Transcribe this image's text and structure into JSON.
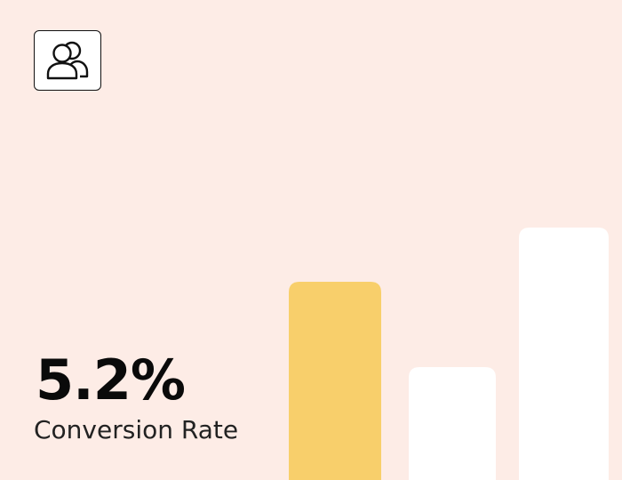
{
  "metric": {
    "value": "5.2%",
    "label": "Conversion Rate"
  },
  "icon": "users-icon",
  "colors": {
    "background": "#fdece6",
    "highlight_bar": "#f8cf6b",
    "bar": "#ffffff",
    "text": "#0a0a0a"
  },
  "chart_data": {
    "type": "bar",
    "categories": [
      "",
      "",
      ""
    ],
    "values": [
      223,
      127,
      284
    ],
    "highlight_index": 0,
    "ylim": [
      0,
      284
    ],
    "grid": false,
    "title": "",
    "xlabel": "",
    "ylabel": ""
  }
}
